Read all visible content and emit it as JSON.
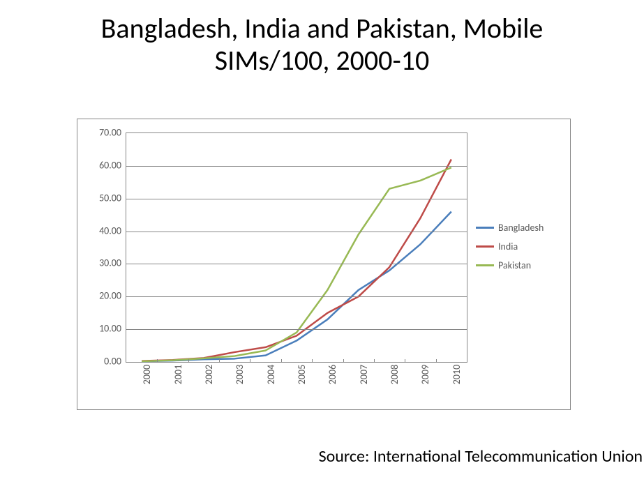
{
  "title_line1": "Bangladesh, India and Pakistan, Mobile",
  "title_line2": "SIMs/100, 2000-10",
  "source_text": "Source:  International Telecommunication Union",
  "chart": {
    "type": "line",
    "background_color": "#ffffff",
    "border_color": "#868686",
    "grid_color": "#868686",
    "axis_label_color": "#595959",
    "axis_fontsize": 14,
    "title_fontsize": 40,
    "line_width": 2.5,
    "ylim": [
      0,
      70
    ],
    "ytick_step": 10,
    "ytick_labels": [
      "0.00",
      "10.00",
      "20.00",
      "30.00",
      "40.00",
      "50.00",
      "60.00",
      "70.00"
    ],
    "x_categories": [
      "2000",
      "2001",
      "2002",
      "2003",
      "2004",
      "2005",
      "2006",
      "2007",
      "2008",
      "2009",
      "2010"
    ],
    "series": [
      {
        "name": "Bangladesh",
        "color": "#4a7ebb",
        "values": [
          0.2,
          0.4,
          0.8,
          1.0,
          2.0,
          6.5,
          13.0,
          22.0,
          28.0,
          36.0,
          46.0
        ]
      },
      {
        "name": "India",
        "color": "#be4b48",
        "values": [
          0.3,
          0.6,
          1.2,
          3.0,
          4.5,
          8.0,
          15.0,
          20.0,
          29.0,
          44.0,
          62.0
        ]
      },
      {
        "name": "Pakistan",
        "color": "#98b954",
        "values": [
          0.2,
          0.5,
          1.1,
          1.8,
          3.5,
          9.0,
          22.0,
          39.0,
          53.0,
          55.5,
          59.5
        ]
      }
    ],
    "legend_position": "right"
  }
}
